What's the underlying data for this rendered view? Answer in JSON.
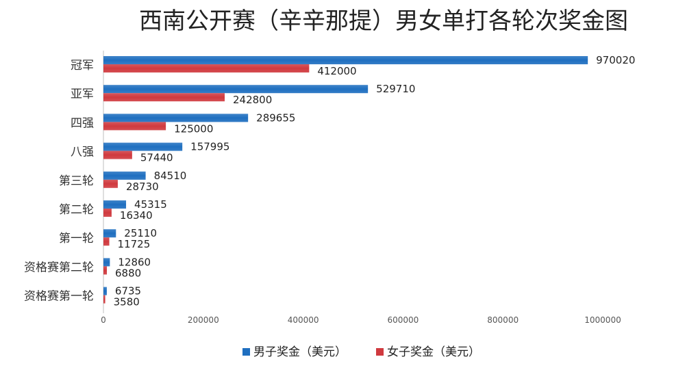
{
  "chart_data": {
    "type": "bar",
    "orientation": "horizontal",
    "title": "西南公开赛（辛辛那提）男女单打各轮次奖金图",
    "categories": [
      "冠军",
      "亚军",
      "四强",
      "八强",
      "第三轮",
      "第二轮",
      "第一轮",
      "资格赛第二轮",
      "资格赛第一轮"
    ],
    "series": [
      {
        "name": "男子奖金（美元）",
        "color": "#1f6fc0",
        "values": [
          970020,
          529710,
          289655,
          157995,
          84510,
          45315,
          25110,
          12860,
          6735
        ]
      },
      {
        "name": "女子奖金（美元）",
        "color": "#d03a3f",
        "values": [
          412000,
          242800,
          125000,
          57440,
          28730,
          16340,
          11725,
          6880,
          3580
        ]
      }
    ],
    "xlim": [
      0,
      1000000
    ],
    "xticks": [
      0,
      200000,
      400000,
      600000,
      800000,
      1000000
    ],
    "xtick_labels": [
      "0",
      "200000",
      "400000",
      "600000",
      "800000",
      "1000000"
    ],
    "xlabel": "",
    "ylabel": "",
    "grid": false,
    "legend": "bottom"
  }
}
